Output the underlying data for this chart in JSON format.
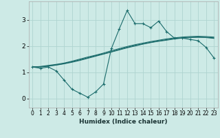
{
  "xlabel": "Humidex (Indice chaleur)",
  "xlim": [
    -0.5,
    23.5
  ],
  "ylim": [
    -0.35,
    3.7
  ],
  "xticks": [
    0,
    1,
    2,
    3,
    4,
    5,
    6,
    7,
    8,
    9,
    10,
    11,
    12,
    13,
    14,
    15,
    16,
    17,
    18,
    19,
    20,
    21,
    22,
    23
  ],
  "yticks": [
    0,
    1,
    2,
    3
  ],
  "bg_color": "#cdeae6",
  "grid_color": "#aed4d0",
  "line_color": "#1a6b6b",
  "line1_x": [
    0,
    1,
    2,
    3,
    4,
    5,
    6,
    7,
    8,
    9,
    10,
    11,
    12,
    13,
    14,
    15,
    16,
    17,
    18,
    19,
    20,
    21,
    22,
    23
  ],
  "line1_y": [
    1.2,
    1.15,
    1.2,
    1.05,
    0.7,
    0.35,
    0.2,
    0.05,
    0.25,
    0.55,
    1.9,
    2.65,
    3.35,
    2.85,
    2.85,
    2.7,
    2.95,
    2.55,
    2.3,
    2.3,
    2.25,
    2.2,
    1.95,
    1.55
  ],
  "line2_x": [
    0,
    1,
    2,
    3,
    4,
    5,
    6,
    7,
    8,
    9,
    10,
    11,
    12,
    13,
    14,
    15,
    16,
    17,
    18,
    19,
    20,
    21,
    22,
    23
  ],
  "line2_y": [
    1.2,
    1.22,
    1.26,
    1.3,
    1.35,
    1.42,
    1.5,
    1.58,
    1.65,
    1.73,
    1.82,
    1.9,
    1.98,
    2.05,
    2.11,
    2.17,
    2.22,
    2.27,
    2.31,
    2.34,
    2.36,
    2.37,
    2.36,
    2.34
  ],
  "line3_x": [
    0,
    1,
    2,
    3,
    4,
    5,
    6,
    7,
    8,
    9,
    10,
    11,
    12,
    13,
    14,
    15,
    16,
    17,
    18,
    19,
    20,
    21,
    22,
    23
  ],
  "line3_y": [
    1.2,
    1.21,
    1.24,
    1.28,
    1.33,
    1.4,
    1.47,
    1.55,
    1.63,
    1.7,
    1.78,
    1.87,
    1.95,
    2.02,
    2.08,
    2.14,
    2.19,
    2.24,
    2.28,
    2.31,
    2.33,
    2.34,
    2.33,
    2.31
  ],
  "line4_x": [
    0,
    1,
    2,
    3,
    4,
    5,
    6,
    7,
    8,
    9,
    10,
    11,
    12,
    13,
    14,
    15,
    16,
    17,
    18,
    19,
    20,
    21,
    22,
    23
  ],
  "line4_y": [
    1.2,
    1.2,
    1.23,
    1.27,
    1.32,
    1.38,
    1.45,
    1.53,
    1.61,
    1.69,
    1.77,
    1.85,
    1.93,
    2.0,
    2.07,
    2.13,
    2.18,
    2.22,
    2.27,
    2.3,
    2.32,
    2.33,
    2.32,
    2.29
  ]
}
